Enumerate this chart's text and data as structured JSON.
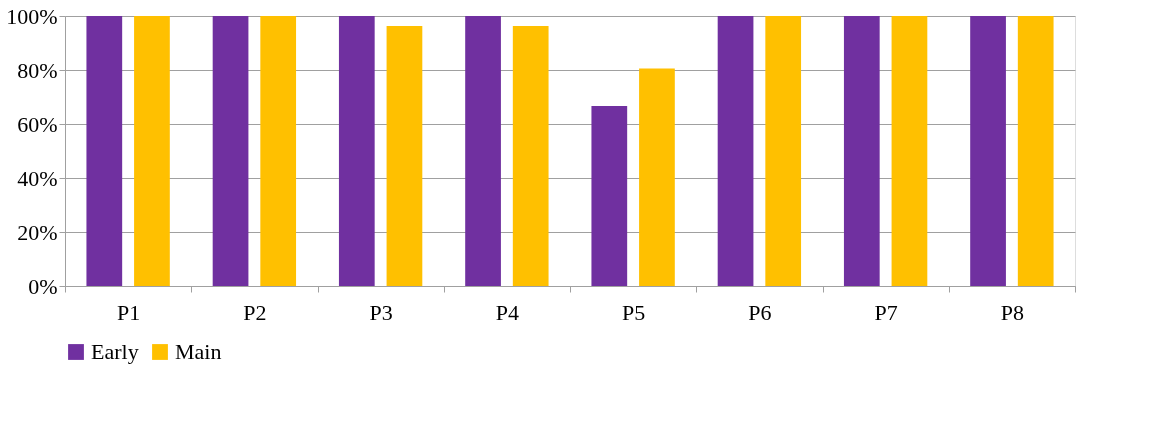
{
  "chart_data": {
    "type": "bar",
    "categories": [
      "P1",
      "P2",
      "P3",
      "P4",
      "P5",
      "P6",
      "P7",
      "P8"
    ],
    "series": [
      {
        "name": "Early",
        "color": "#7030a0",
        "values": [
          100,
          100,
          100,
          100,
          66.7,
          100,
          100,
          100
        ]
      },
      {
        "name": "Main",
        "color": "#ffc000",
        "values": [
          100,
          100,
          96.3,
          96.3,
          80.6,
          100,
          100,
          100
        ]
      }
    ],
    "ylim": [
      0,
      100
    ],
    "yticks": [
      {
        "value": 0,
        "label": "0%"
      },
      {
        "value": 20,
        "label": "20%"
      },
      {
        "value": 40,
        "label": "40%"
      },
      {
        "value": 60,
        "label": "60%"
      },
      {
        "value": 80,
        "label": "80%"
      },
      {
        "value": 100,
        "label": "100%"
      }
    ],
    "grid": "y",
    "legend": "bottom"
  }
}
